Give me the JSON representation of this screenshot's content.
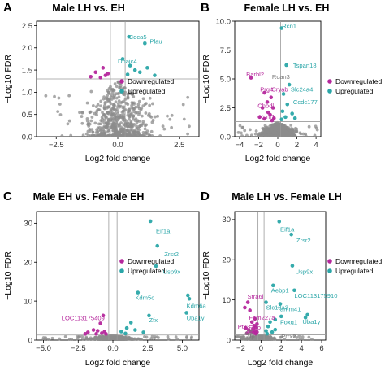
{
  "colors": {
    "down": "#B5279C",
    "up": "#2AA6A8",
    "ns": "#8C8C8C",
    "ns_label": "#7A7A7A",
    "threshold_line": "#9A9A9A"
  },
  "legend": {
    "down_label": "Downregulated",
    "up_label": "Upregulated"
  },
  "chart_data": [
    {
      "type": "scatter",
      "panel": "A",
      "title": "Male LH vs. EH",
      "xlabel": "Log2 fold change",
      "ylabel": "−Log10 FDR",
      "xlim": [
        -3.3,
        3.3
      ],
      "ylim": [
        0,
        2.6
      ],
      "xticks": [
        -2.5,
        0.0,
        2.5
      ],
      "xtick_labels": [
        "−2.5",
        "0.0",
        "2.5"
      ],
      "yticks": [
        0.0,
        0.5,
        1.0,
        1.5,
        2.0,
        2.5
      ],
      "ytick_labels": [
        "0.0",
        "0.5",
        "1.0",
        "1.5",
        "2.0",
        "2.5"
      ],
      "fdr_threshold": 1.3,
      "fc_thresholds": [
        -0.3,
        0.3
      ],
      "legend_position": "bottom-right",
      "labels": [
        {
          "text": "Cdca5",
          "x": 0.45,
          "y": 2.2,
          "group": "up"
        },
        {
          "text": "Plau",
          "x": 1.3,
          "y": 2.1,
          "group": "up"
        },
        {
          "text": "Dnajc4",
          "x": 0.0,
          "y": 1.65,
          "group": "up"
        }
      ],
      "sig": [
        {
          "x": 0.45,
          "y": 2.25,
          "group": "up"
        },
        {
          "x": 1.1,
          "y": 2.1,
          "group": "up"
        },
        {
          "x": 0.2,
          "y": 1.75,
          "group": "up"
        },
        {
          "x": 0.5,
          "y": 1.6,
          "group": "up"
        },
        {
          "x": 0.7,
          "y": 1.5,
          "group": "up"
        },
        {
          "x": 0.9,
          "y": 1.45,
          "group": "up"
        },
        {
          "x": 1.2,
          "y": 1.55,
          "group": "up"
        },
        {
          "x": 0.4,
          "y": 1.4,
          "group": "up"
        },
        {
          "x": 1.5,
          "y": 1.38,
          "group": "up"
        },
        {
          "x": -0.6,
          "y": 1.55,
          "group": "down"
        },
        {
          "x": -0.9,
          "y": 1.45,
          "group": "down"
        },
        {
          "x": -0.5,
          "y": 1.38,
          "group": "down"
        },
        {
          "x": -1.1,
          "y": 1.35,
          "group": "down"
        },
        {
          "x": -0.7,
          "y": 1.33,
          "group": "down"
        },
        {
          "x": -0.4,
          "y": 1.42,
          "group": "down"
        }
      ],
      "ns_params": {
        "seed": 11,
        "count": 560,
        "spread": 1.0,
        "max_y": 1.28,
        "shape": 0.55
      }
    },
    {
      "type": "scatter",
      "panel": "B",
      "title": "Female LH vs. EH",
      "xlabel": "Log2 fold change",
      "ylabel": "−Log10 FDR",
      "xlim": [
        -4.5,
        4.5
      ],
      "ylim": [
        0,
        10
      ],
      "xticks": [
        -4,
        -2,
        0,
        2,
        4
      ],
      "xtick_labels": [
        "−4",
        "−2",
        "0",
        "2",
        "4"
      ],
      "yticks": [
        0.0,
        2.5,
        5.0,
        7.5,
        10.0
      ],
      "ytick_labels": [
        "0.0",
        "2.5",
        "5.0",
        "7.5",
        "10.0"
      ],
      "fdr_threshold": 1.3,
      "fc_thresholds": [
        -0.3,
        0.3
      ],
      "legend_position": "right",
      "labels": [
        {
          "text": "Rcn1",
          "x": 0.45,
          "y": 9.4,
          "group": "up"
        },
        {
          "text": "Tspan18",
          "x": 1.6,
          "y": 6.0,
          "group": "up"
        },
        {
          "text": "Barhl2",
          "x": -3.3,
          "y": 5.2,
          "group": "down"
        },
        {
          "text": "Rcan3",
          "x": -0.6,
          "y": 5.0,
          "group": "ns"
        },
        {
          "text": "Prg4",
          "x": -1.85,
          "y": 3.9,
          "group": "down"
        },
        {
          "text": "Cryab",
          "x": -0.65,
          "y": 3.9,
          "group": "down"
        },
        {
          "text": "Slc24a4",
          "x": 1.35,
          "y": 3.9,
          "group": "up"
        },
        {
          "text": "Chodl",
          "x": -2.1,
          "y": 2.5,
          "group": "down"
        },
        {
          "text": "Ccdc177",
          "x": 1.6,
          "y": 2.8,
          "group": "up"
        },
        {
          "text": "Kcnf1",
          "x": -1.95,
          "y": 1.55,
          "group": "down"
        }
      ],
      "sig": [
        {
          "x": 0.4,
          "y": 9.4,
          "group": "up"
        },
        {
          "x": 0.9,
          "y": 6.2,
          "group": "up"
        },
        {
          "x": 1.2,
          "y": 4.5,
          "group": "up"
        },
        {
          "x": 0.6,
          "y": 3.7,
          "group": "up"
        },
        {
          "x": 1.0,
          "y": 2.8,
          "group": "up"
        },
        {
          "x": 0.5,
          "y": 2.2,
          "group": "up"
        },
        {
          "x": 1.5,
          "y": 2.0,
          "group": "up"
        },
        {
          "x": 0.8,
          "y": 1.7,
          "group": "up"
        },
        {
          "x": 0.4,
          "y": 1.5,
          "group": "up"
        },
        {
          "x": 1.8,
          "y": 1.6,
          "group": "up"
        },
        {
          "x": -2.8,
          "y": 5.1,
          "group": "down"
        },
        {
          "x": -1.4,
          "y": 3.8,
          "group": "down"
        },
        {
          "x": -0.7,
          "y": 3.4,
          "group": "down"
        },
        {
          "x": -1.1,
          "y": 3.0,
          "group": "down"
        },
        {
          "x": -1.6,
          "y": 2.5,
          "group": "down"
        },
        {
          "x": -0.5,
          "y": 2.5,
          "group": "down"
        },
        {
          "x": -1.0,
          "y": 2.1,
          "group": "down"
        },
        {
          "x": -0.8,
          "y": 1.9,
          "group": "down"
        },
        {
          "x": -1.4,
          "y": 1.55,
          "group": "down"
        },
        {
          "x": -0.4,
          "y": 1.6,
          "group": "down"
        },
        {
          "x": -1.9,
          "y": 1.7,
          "group": "down"
        },
        {
          "x": -0.6,
          "y": 1.4,
          "group": "down"
        }
      ],
      "ns_params": {
        "seed": 23,
        "count": 620,
        "spread": 1.3,
        "max_y": 1.25,
        "shape": 0.6
      }
    },
    {
      "type": "scatter",
      "panel": "C",
      "title": "Male EH vs. Female EH",
      "xlabel": "Log2 fold change",
      "ylabel": "−Log10 FDR",
      "xlim": [
        -5.5,
        6.2
      ],
      "ylim": [
        0,
        33
      ],
      "xticks": [
        -5.0,
        -2.5,
        0.0,
        2.5,
        5.0
      ],
      "xtick_labels": [
        "−5.0",
        "−2.5",
        "0.0",
        "2.5",
        "5.0"
      ],
      "yticks": [
        0,
        10,
        20,
        30
      ],
      "ytick_labels": [
        "0",
        "10",
        "20",
        "30"
      ],
      "fdr_threshold": 1.3,
      "fc_thresholds": [
        -0.3,
        0.3
      ],
      "legend_position": "top-right",
      "labels": [
        {
          "text": "Eif1a",
          "x": 3.1,
          "y": 27.5,
          "group": "up"
        },
        {
          "text": "Zrsr2",
          "x": 3.7,
          "y": 21.5,
          "group": "up"
        },
        {
          "text": "Usp9x",
          "x": 3.6,
          "y": 17.0,
          "group": "up"
        },
        {
          "text": "Kdm5c",
          "x": 1.6,
          "y": 10.3,
          "group": "up"
        },
        {
          "text": "Kdm6a",
          "x": 5.3,
          "y": 8.3,
          "group": "up"
        },
        {
          "text": "LOC113175409",
          "x": -3.7,
          "y": 5.1,
          "group": "down"
        },
        {
          "text": "Uba1y",
          "x": 5.3,
          "y": 5.1,
          "group": "up"
        },
        {
          "text": "Zfx",
          "x": 2.6,
          "y": 4.6,
          "group": "up"
        }
      ],
      "sig": [
        {
          "x": 2.7,
          "y": 30.5,
          "group": "up"
        },
        {
          "x": 3.2,
          "y": 24.2,
          "group": "up"
        },
        {
          "x": 3.1,
          "y": 19.0,
          "group": "up"
        },
        {
          "x": 1.8,
          "y": 12.2,
          "group": "up"
        },
        {
          "x": 5.4,
          "y": 11.5,
          "group": "up"
        },
        {
          "x": 5.5,
          "y": 10.6,
          "group": "up"
        },
        {
          "x": 5.3,
          "y": 7.0,
          "group": "up"
        },
        {
          "x": 2.6,
          "y": 6.3,
          "group": "up"
        },
        {
          "x": 1.3,
          "y": 4.5,
          "group": "up"
        },
        {
          "x": 1.0,
          "y": 3.1,
          "group": "up"
        },
        {
          "x": 1.6,
          "y": 2.6,
          "group": "up"
        },
        {
          "x": 2.2,
          "y": 2.0,
          "group": "up"
        },
        {
          "x": 0.6,
          "y": 2.2,
          "group": "up"
        },
        {
          "x": 0.9,
          "y": 1.7,
          "group": "up"
        },
        {
          "x": -0.7,
          "y": 6.3,
          "group": "down"
        },
        {
          "x": -0.9,
          "y": 4.3,
          "group": "down"
        },
        {
          "x": -1.4,
          "y": 2.6,
          "group": "down"
        },
        {
          "x": -1.1,
          "y": 2.4,
          "group": "down"
        },
        {
          "x": -0.6,
          "y": 2.2,
          "group": "down"
        },
        {
          "x": -1.8,
          "y": 2.0,
          "group": "down"
        },
        {
          "x": -0.8,
          "y": 1.8,
          "group": "down"
        },
        {
          "x": -1.2,
          "y": 1.6,
          "group": "down"
        },
        {
          "x": -0.5,
          "y": 1.6,
          "group": "down"
        },
        {
          "x": -2.0,
          "y": 1.6,
          "group": "down"
        }
      ],
      "ns_params": {
        "seed": 37,
        "count": 480,
        "spread": 1.2,
        "max_y": 1.25,
        "shape": 0.7
      }
    },
    {
      "type": "scatter",
      "panel": "D",
      "title": "Male LH vs. Female LH",
      "xlabel": "Log2 fold change",
      "ylabel": "−Log10 FDR",
      "xlim": [
        -2.6,
        6.4
      ],
      "ylim": [
        0,
        32
      ],
      "xticks": [
        -2,
        0,
        2,
        4,
        6
      ],
      "xtick_labels": [
        "−2",
        "0",
        "2",
        "4",
        "6"
      ],
      "yticks": [
        0,
        10,
        20,
        30
      ],
      "ytick_labels": [
        "0",
        "10",
        "20",
        "30"
      ],
      "fdr_threshold": 1.3,
      "fc_thresholds": [
        -0.3,
        0.3
      ],
      "legend_position": "right",
      "labels": [
        {
          "text": "Eif1a",
          "x": 1.9,
          "y": 27.0,
          "group": "up"
        },
        {
          "text": "Zrsr2",
          "x": 3.5,
          "y": 24.3,
          "group": "up"
        },
        {
          "text": "Usp9x",
          "x": 3.4,
          "y": 16.5,
          "group": "up"
        },
        {
          "text": "Aebp1",
          "x": 1.0,
          "y": 11.8,
          "group": "up"
        },
        {
          "text": "LOC113175910",
          "x": 3.3,
          "y": 10.5,
          "group": "up"
        },
        {
          "text": "Stra6l",
          "x": -1.35,
          "y": 10.3,
          "group": "down"
        },
        {
          "text": "Slc13a3",
          "x": 0.5,
          "y": 7.6,
          "group": "up"
        },
        {
          "text": "Tamm41",
          "x": 1.6,
          "y": 7.2,
          "group": "up"
        },
        {
          "text": "Fam227a",
          "x": -1.2,
          "y": 5.1,
          "group": "down"
        },
        {
          "text": "Uba1y",
          "x": 4.1,
          "y": 4.1,
          "group": "up"
        },
        {
          "text": "Foxg1",
          "x": 1.9,
          "y": 3.9,
          "group": "up"
        },
        {
          "text": "Ptx3",
          "x": -2.3,
          "y": 2.8,
          "group": "down"
        },
        {
          "text": "Fmo",
          "x": -1.25,
          "y": 2.6,
          "group": "down"
        },
        {
          "text": "Zfp",
          "x": -1.6,
          "y": 1.6,
          "group": "ns"
        },
        {
          "text": "Zfp",
          "x": -1.5,
          "y": 0.4,
          "group": "ns"
        },
        {
          "text": "Prrx2",
          "x": 2.0,
          "y": 0.4,
          "group": "ns"
        }
      ],
      "sig": [
        {
          "x": 1.8,
          "y": 29.5,
          "group": "up"
        },
        {
          "x": 3.0,
          "y": 26.3,
          "group": "up"
        },
        {
          "x": 3.1,
          "y": 18.5,
          "group": "up"
        },
        {
          "x": 1.2,
          "y": 13.6,
          "group": "up"
        },
        {
          "x": 3.3,
          "y": 12.4,
          "group": "up"
        },
        {
          "x": 0.5,
          "y": 9.4,
          "group": "up"
        },
        {
          "x": 1.9,
          "y": 9.0,
          "group": "up"
        },
        {
          "x": 4.6,
          "y": 6.3,
          "group": "up"
        },
        {
          "x": 4.4,
          "y": 5.6,
          "group": "up"
        },
        {
          "x": 2.0,
          "y": 5.9,
          "group": "up"
        },
        {
          "x": 1.4,
          "y": 5.1,
          "group": "up"
        },
        {
          "x": 0.9,
          "y": 4.5,
          "group": "up"
        },
        {
          "x": 0.7,
          "y": 3.4,
          "group": "up"
        },
        {
          "x": 1.4,
          "y": 2.6,
          "group": "up"
        },
        {
          "x": 0.5,
          "y": 2.3,
          "group": "up"
        },
        {
          "x": 1.1,
          "y": 2.0,
          "group": "up"
        },
        {
          "x": 0.6,
          "y": 1.6,
          "group": "up"
        },
        {
          "x": -1.3,
          "y": 9.4,
          "group": "down"
        },
        {
          "x": -1.6,
          "y": 8.1,
          "group": "down"
        },
        {
          "x": -1.1,
          "y": 7.4,
          "group": "down"
        },
        {
          "x": -0.6,
          "y": 5.3,
          "group": "down"
        },
        {
          "x": -0.9,
          "y": 4.5,
          "group": "down"
        },
        {
          "x": -0.4,
          "y": 4.0,
          "group": "down"
        },
        {
          "x": -0.7,
          "y": 3.6,
          "group": "down"
        },
        {
          "x": -0.5,
          "y": 3.2,
          "group": "down"
        },
        {
          "x": -1.5,
          "y": 3.0,
          "group": "down"
        },
        {
          "x": -0.8,
          "y": 2.8,
          "group": "down"
        },
        {
          "x": -1.2,
          "y": 2.5,
          "group": "down"
        },
        {
          "x": -0.6,
          "y": 2.3,
          "group": "down"
        },
        {
          "x": -1.0,
          "y": 2.1,
          "group": "down"
        },
        {
          "x": -0.4,
          "y": 2.0,
          "group": "down"
        },
        {
          "x": -0.7,
          "y": 1.8,
          "group": "down"
        },
        {
          "x": -1.4,
          "y": 1.7,
          "group": "down"
        },
        {
          "x": -0.5,
          "y": 1.6,
          "group": "down"
        }
      ],
      "ns_params": {
        "seed": 53,
        "count": 520,
        "spread": 0.9,
        "max_y": 1.25,
        "shape": 0.7
      }
    }
  ]
}
